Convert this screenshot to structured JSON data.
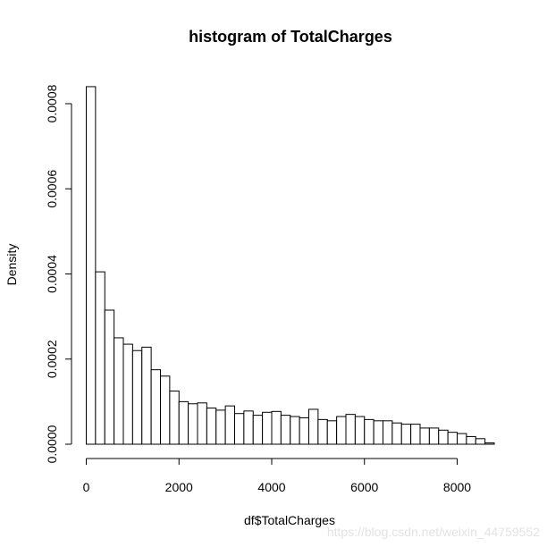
{
  "chart_data": {
    "type": "bar",
    "title": "histogram of TotalCharges",
    "xlabel": "df$TotalCharges",
    "ylabel": "Density",
    "x_ticks": [
      0,
      2000,
      4000,
      6000,
      8000
    ],
    "x_tick_labels": [
      "0",
      "2000",
      "4000",
      "6000",
      "8000"
    ],
    "y_ticks": [
      0,
      0.0002,
      0.0004,
      0.0006,
      0.0008
    ],
    "y_tick_labels": [
      "0.0000",
      "0.0002",
      "0.0004",
      "0.0006",
      "0.0008"
    ],
    "xlim": [
      0,
      8800
    ],
    "ylim": [
      0,
      0.00084
    ],
    "bin_width": 200,
    "bin_start": 0,
    "grid": false,
    "legend": "none",
    "values": [
      0.00084,
      0.000405,
      0.000315,
      0.00025,
      0.000235,
      0.00022,
      0.000228,
      0.000175,
      0.00016,
      0.000125,
      0.0001,
      9.5e-05,
      9.7e-05,
      8.5e-05,
      8e-05,
      9e-05,
      7.2e-05,
      7.8e-05,
      6.8e-05,
      7.5e-05,
      7.7e-05,
      6.8e-05,
      6.5e-05,
      6.2e-05,
      8.2e-05,
      5.8e-05,
      5.5e-05,
      6.5e-05,
      7e-05,
      6.5e-05,
      5.8e-05,
      5.5e-05,
      5.5e-05,
      5e-05,
      4.7e-05,
      4.7e-05,
      3.8e-05,
      3.8e-05,
      3.3e-05,
      2.8e-05,
      2.5e-05,
      1.8e-05,
      1.3e-05,
      3e-06
    ]
  },
  "watermark": "https://blog.csdn.net/weixin_44759552"
}
